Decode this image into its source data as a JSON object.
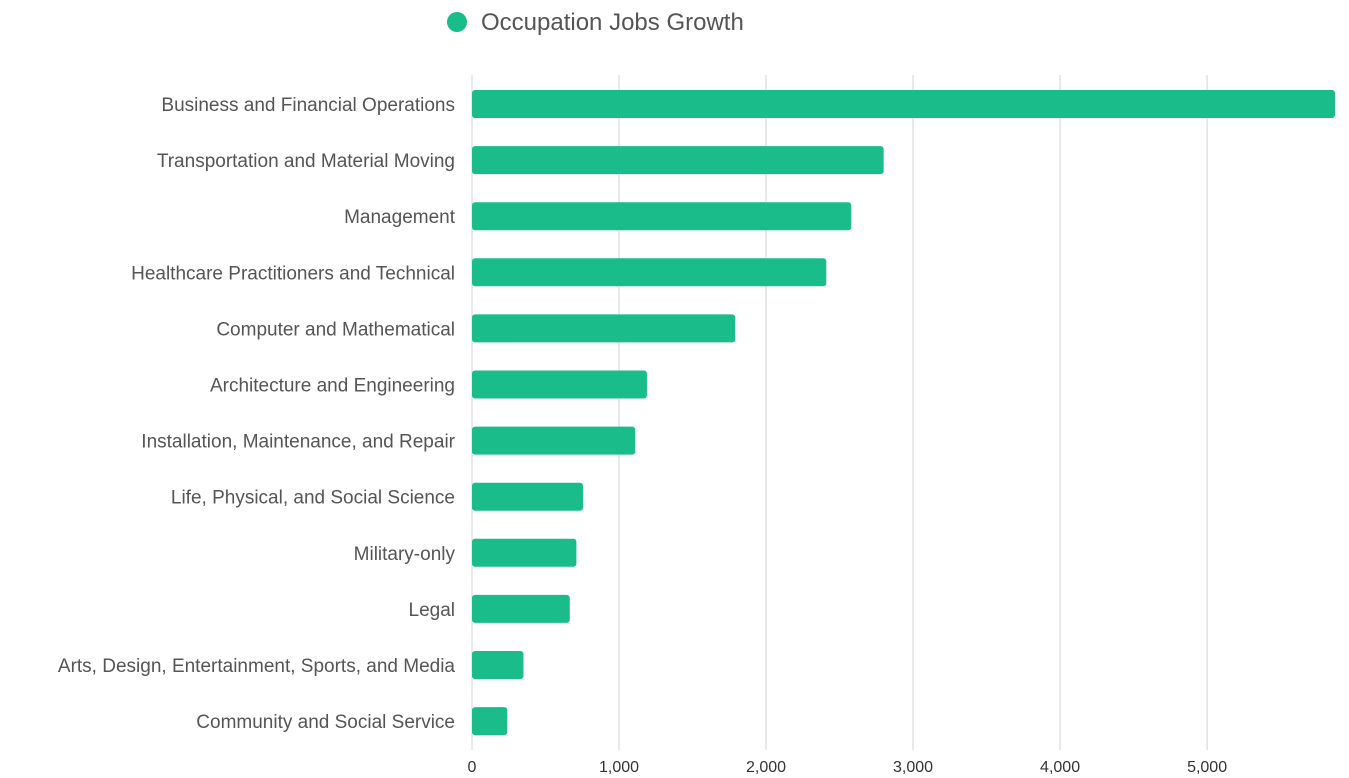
{
  "chart_data": {
    "type": "bar",
    "orientation": "horizontal",
    "categories": [
      "Business and Financial Operations",
      "Transportation and Material Moving",
      "Management",
      "Healthcare Practitioners and Technical",
      "Computer and Mathematical",
      "Architecture and Engineering",
      "Installation, Maintenance, and Repair",
      "Life, Physical, and Social Science",
      "Military-only",
      "Legal",
      "Arts, Design, Entertainment, Sports, and Media",
      "Community and Social Service"
    ],
    "series": [
      {
        "name": "Occupation Jobs Growth",
        "color": "#1abc8a",
        "values": [
          5870,
          2800,
          2580,
          2410,
          1790,
          1190,
          1110,
          755,
          710,
          665,
          350,
          240
        ]
      }
    ],
    "title": "",
    "xlabel": "",
    "ylabel": "",
    "xlim": [
      0,
      5870
    ],
    "x_ticks": [
      0,
      1000,
      2000,
      3000,
      4000,
      5000
    ],
    "x_tick_labels": [
      "0",
      "1,000",
      "2,000",
      "3,000",
      "4,000",
      "5,000"
    ],
    "grid": true,
    "legend_position": "top-center"
  }
}
